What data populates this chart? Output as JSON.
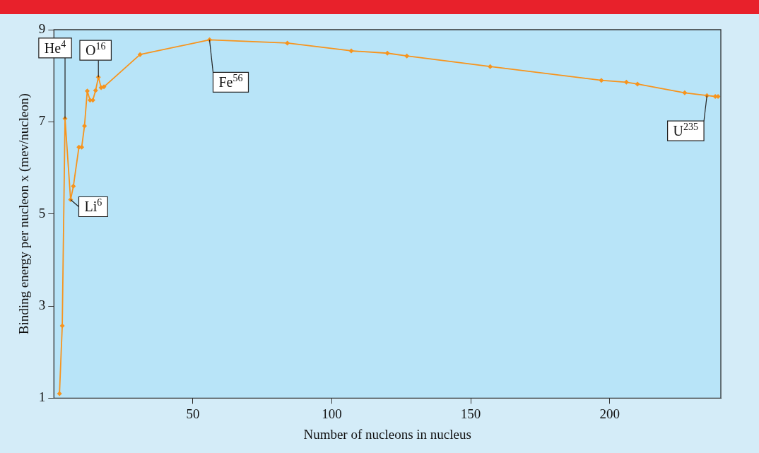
{
  "chart_data": {
    "type": "line",
    "xlabel": "Number of nucleons in nucleus",
    "ylabel": "Binding energy per nucleon x (mev/nucleon)",
    "x": [
      2,
      3,
      4,
      6,
      7,
      9,
      10,
      11,
      12,
      13,
      14,
      15,
      16,
      17,
      18,
      31,
      56,
      84,
      107,
      120,
      127,
      157,
      197,
      206,
      210,
      227,
      235,
      238,
      239
    ],
    "series": [
      {
        "color": "#f7941d",
        "values": [
          1.1,
          2.57,
          7.07,
          5.31,
          5.6,
          6.45,
          6.45,
          6.91,
          7.67,
          7.47,
          7.47,
          7.68,
          7.97,
          7.74,
          7.76,
          8.46,
          8.78,
          8.71,
          8.54,
          8.49,
          8.43,
          8.2,
          7.9,
          7.86,
          7.82,
          7.63,
          7.57,
          7.55,
          7.55
        ]
      }
    ],
    "xlim": [
      0,
      240
    ],
    "ylim": [
      1,
      9
    ],
    "xticks": [
      50,
      100,
      150,
      200
    ],
    "yticks": [
      1,
      3,
      5,
      7,
      9
    ],
    "grid": false,
    "legend": false,
    "marker": "diamond",
    "line_style": "solid",
    "annotations": [
      {
        "text": "He$^{4}$",
        "x": 4,
        "y": 7.07
      },
      {
        "text": "Li$^{6}$",
        "x": 6,
        "y": 5.31
      },
      {
        "text": "O$^{16}$",
        "x": 16,
        "y": 7.97
      },
      {
        "text": "Fe$^{56}$",
        "x": 56,
        "y": 8.78
      },
      {
        "text": "U$^{235}$",
        "x": 235,
        "y": 7.57
      }
    ]
  }
}
